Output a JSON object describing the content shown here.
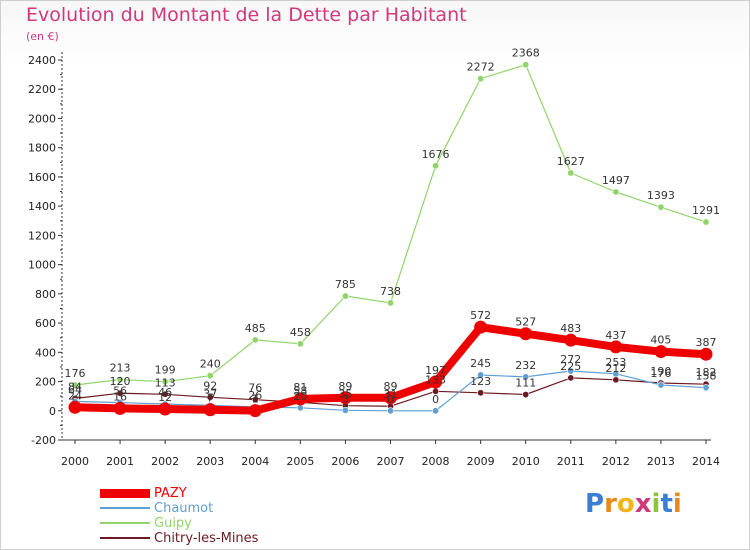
{
  "page": {
    "title": "Evolution du Montant de la Dette par Habitant",
    "subtitle": "(en €)"
  },
  "logo": {
    "text": "Proxiti",
    "letter_colors": [
      "#3b7fd4",
      "#e8891a",
      "#f2b619",
      "#d0397a",
      "#8cc63f",
      "#3b7fd4",
      "#e8891a"
    ]
  },
  "chart_data": {
    "type": "line",
    "title": "Evolution du Montant de la Dette par Habitant",
    "subtitle": "(en €)",
    "xlabel": "",
    "ylabel": "",
    "x": [
      "2000",
      "2001",
      "2002",
      "2003",
      "2004",
      "2005",
      "2006",
      "2007",
      "2008",
      "2009",
      "2010",
      "2011",
      "2012",
      "2013",
      "2014"
    ],
    "ylim": [
      -200,
      2400
    ],
    "yticks": [
      -200,
      0,
      200,
      400,
      600,
      800,
      1000,
      1200,
      1400,
      1600,
      1800,
      2000,
      2200,
      2400
    ],
    "grid": false,
    "legend_position": "bottom-left",
    "series": [
      {
        "name": "PAZY",
        "color": "#ee0000",
        "values": [
          24,
          16,
          12,
          7,
          1,
          81,
          89,
          89,
          197,
          572,
          527,
          483,
          437,
          405,
          387
        ]
      },
      {
        "name": "Chaumot",
        "color": "#5f9fd1",
        "values": [
          64,
          56,
          46,
          37,
          26,
          20,
          3,
          0,
          0,
          245,
          232,
          272,
          253,
          176,
          158
        ]
      },
      {
        "name": "Guipy",
        "color": "#90d46a",
        "values": [
          176,
          213,
          199,
          240,
          485,
          458,
          785,
          738,
          1676,
          2272,
          2368,
          1627,
          1497,
          1393,
          1291
        ]
      },
      {
        "name": "Chitry-les-Mines",
        "color": "#6b1a22",
        "values": [
          84,
          120,
          113,
          92,
          76,
          58,
          35,
          31,
          133,
          123,
          111,
          225,
          212,
          190,
          182
        ]
      }
    ]
  }
}
